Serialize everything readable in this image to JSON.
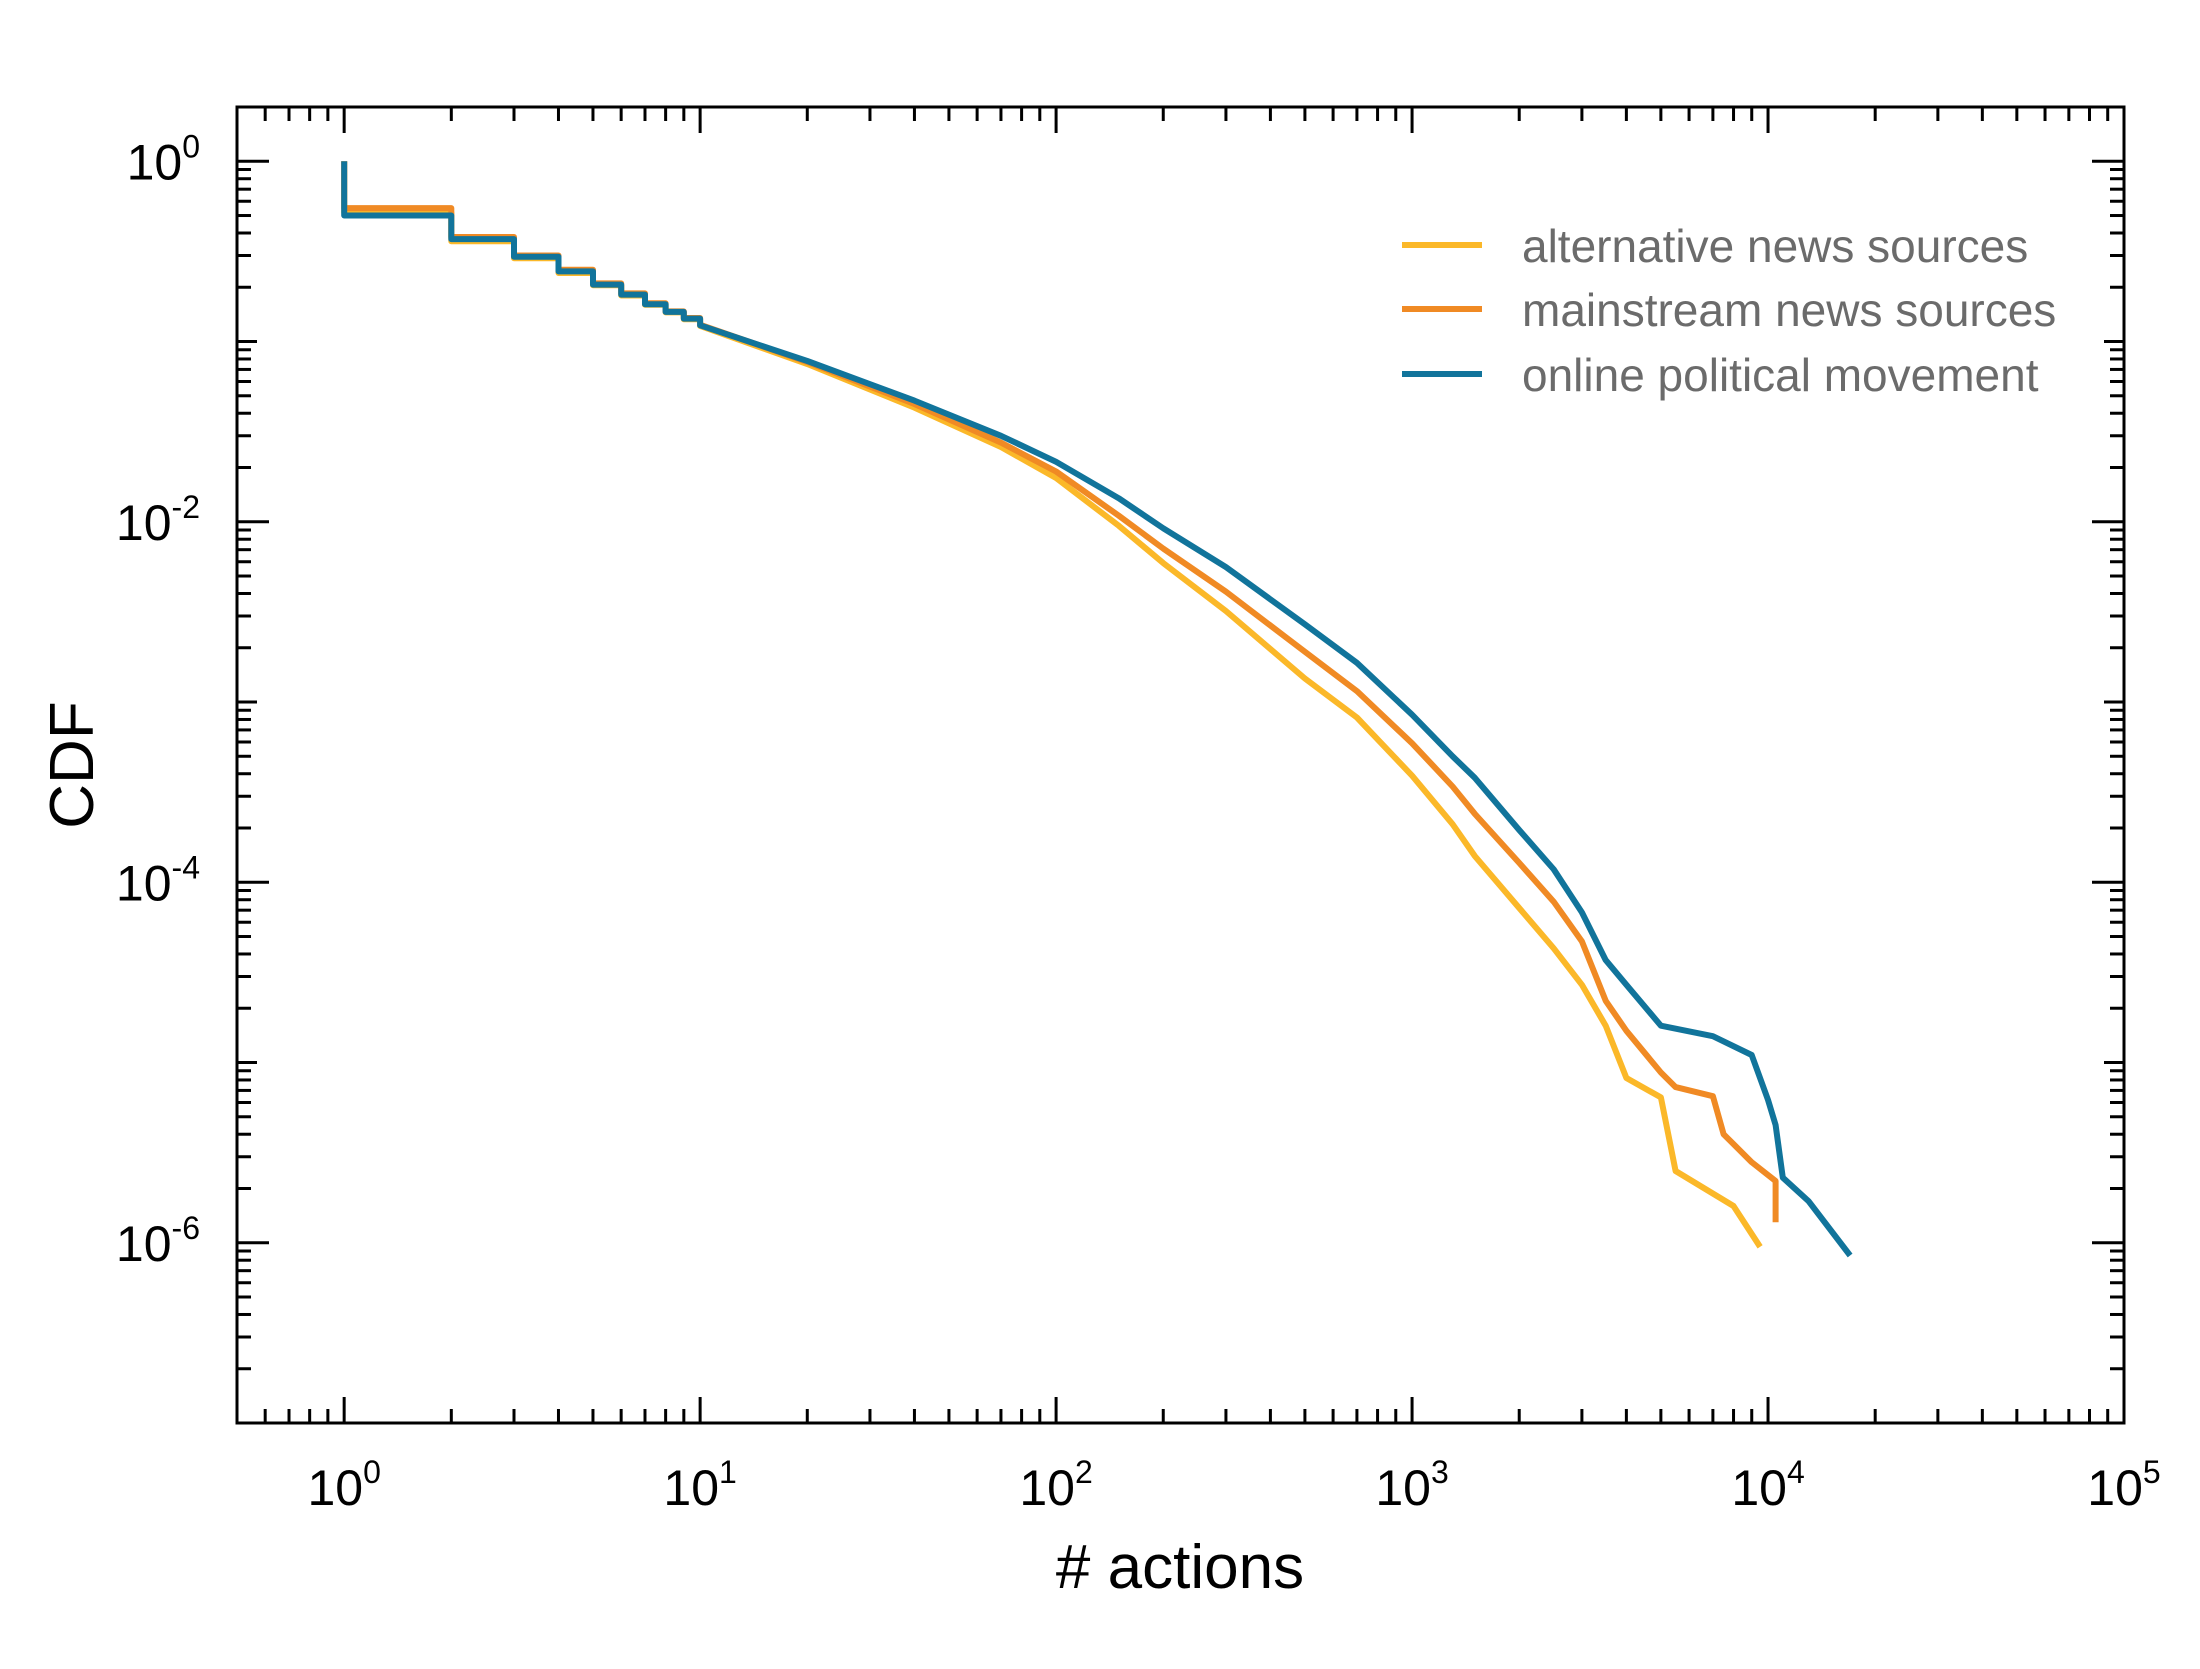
{
  "chart_data": {
    "type": "line",
    "xscale": "log",
    "yscale": "log",
    "xlabel": "# actions",
    "ylabel": "CDF",
    "xlim": [
      0.5,
      100000
    ],
    "ylim": [
      1e-07,
      2
    ],
    "xticks": [
      {
        "base": "10",
        "exp": "0",
        "value": 1
      },
      {
        "base": "10",
        "exp": "1",
        "value": 10
      },
      {
        "base": "10",
        "exp": "2",
        "value": 100
      },
      {
        "base": "10",
        "exp": "3",
        "value": 1000
      },
      {
        "base": "10",
        "exp": "4",
        "value": 10000
      },
      {
        "base": "10",
        "exp": "5",
        "value": 100000
      }
    ],
    "yticks": [
      {
        "base": "10",
        "exp": "0",
        "value": 1
      },
      {
        "base": "10",
        "exp": "-2",
        "value": 0.01
      },
      {
        "base": "10",
        "exp": "-4",
        "value": 0.0001
      },
      {
        "base": "10",
        "exp": "-6",
        "value": 1e-06
      }
    ],
    "legend_position": "top-right",
    "series": [
      {
        "name": "alternative news sources",
        "color": "#FBB829",
        "step_x": [
          1,
          2,
          3,
          4,
          5,
          6,
          7,
          8,
          9,
          10
        ],
        "step_y": [
          0.52,
          0.36,
          0.29,
          0.24,
          0.205,
          0.18,
          0.16,
          0.145,
          0.133,
          0.122
        ],
        "x": [
          10,
          20,
          40,
          70,
          100,
          150,
          200,
          300,
          500,
          700,
          1000,
          1300,
          1500,
          2000,
          2500,
          3000,
          3500,
          4000,
          5000,
          5500,
          8000,
          9500
        ],
        "y": [
          0.122,
          0.075,
          0.043,
          0.026,
          0.0175,
          0.0095,
          0.0059,
          0.0032,
          0.00135,
          0.00082,
          0.00039,
          0.00021,
          0.00014,
          7.2e-05,
          4.3e-05,
          2.7e-05,
          1.6e-05,
          8.2e-06,
          6.4e-06,
          2.5e-06,
          1.6e-06,
          9.5e-07
        ]
      },
      {
        "name": "mainstream news sources",
        "color": "#F08A24",
        "step_x": [
          1,
          2,
          3,
          4,
          5,
          6,
          7,
          8,
          9,
          10
        ],
        "step_y": [
          0.55,
          0.38,
          0.3,
          0.25,
          0.21,
          0.185,
          0.163,
          0.147,
          0.135,
          0.124
        ],
        "x": [
          10,
          20,
          40,
          70,
          100,
          150,
          200,
          300,
          500,
          700,
          1000,
          1300,
          1500,
          2000,
          2500,
          3000,
          3500,
          4000,
          5000,
          5500,
          7000,
          7500,
          9000,
          10500,
          10500
        ],
        "y": [
          0.124,
          0.077,
          0.045,
          0.0275,
          0.019,
          0.0108,
          0.0071,
          0.0041,
          0.0019,
          0.00115,
          0.00059,
          0.00034,
          0.00024,
          0.000128,
          7.8e-05,
          4.7e-05,
          2.2e-05,
          1.5e-05,
          8.8e-06,
          7.3e-06,
          6.5e-06,
          4e-06,
          2.8e-06,
          2.2e-06,
          1.3e-06
        ]
      },
      {
        "name": "online political movement",
        "color": "#11749B",
        "step_x": [
          1,
          2,
          3,
          4,
          5,
          6,
          7,
          8,
          9,
          10
        ],
        "step_y": [
          0.5,
          0.37,
          0.295,
          0.245,
          0.207,
          0.182,
          0.161,
          0.146,
          0.134,
          0.123
        ],
        "x": [
          10,
          20,
          40,
          70,
          100,
          150,
          200,
          300,
          500,
          700,
          1000,
          1300,
          1500,
          2000,
          2500,
          3000,
          3500,
          4000,
          5000,
          7000,
          9000,
          10000,
          10500,
          11000,
          13000,
          17000
        ],
        "y": [
          0.123,
          0.078,
          0.047,
          0.03,
          0.0215,
          0.0135,
          0.0092,
          0.0056,
          0.0027,
          0.00165,
          0.00085,
          0.0005,
          0.00038,
          0.000195,
          0.000118,
          6.8e-05,
          3.7e-05,
          2.7e-05,
          1.6e-05,
          1.4e-05,
          1.1e-05,
          6.2e-06,
          4.5e-06,
          2.3e-06,
          1.7e-06,
          8.5e-07
        ]
      }
    ]
  }
}
